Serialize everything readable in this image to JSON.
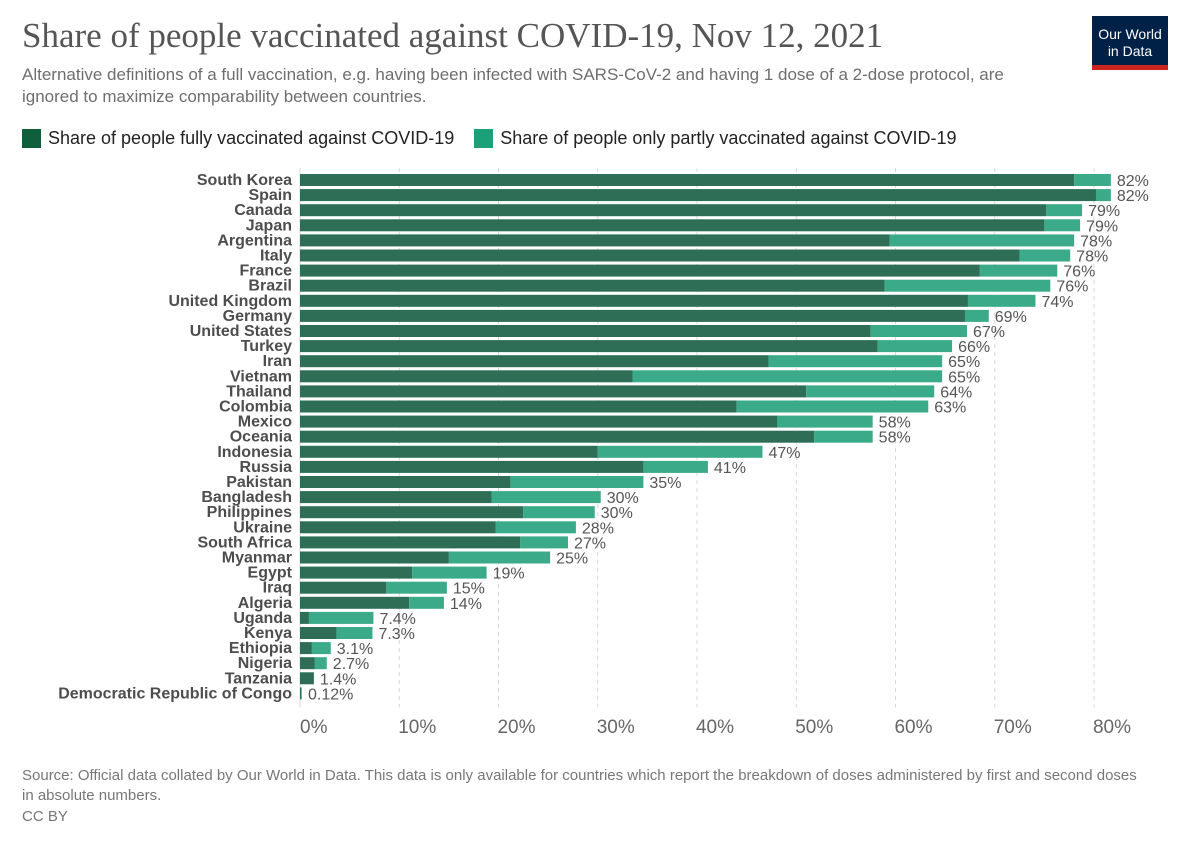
{
  "header": {
    "title": "Share of people vaccinated against COVID-19, Nov 12, 2021",
    "subtitle": "Alternative definitions of a full vaccination, e.g. having been infected with SARS-CoV-2 and having 1 dose of a 2-dose protocol, are ignored to maximize comparability between countries."
  },
  "logo": {
    "line1": "Our World",
    "line2": "in Data"
  },
  "footer": {
    "source": "Source: Official data collated by Our World in Data. This data is only available for countries which report the breakdown of doses administered by first and second doses in absolute numbers.",
    "license": "CC BY"
  },
  "colors": {
    "full": "#2e6e57",
    "partial": "#3aaa89",
    "legend_full": "#0f5e3c",
    "legend_partial": "#1ba079",
    "grid": "#d8d8d8",
    "logo_bg": "#002147",
    "logo_accent": "#ce261e"
  },
  "chart_data": {
    "type": "bar",
    "orientation": "horizontal",
    "stacked": true,
    "xlim": [
      0,
      80
    ],
    "x_ticks": [
      0,
      10,
      20,
      30,
      40,
      50,
      60,
      70,
      80
    ],
    "x_tick_labels": [
      "0%",
      "10%",
      "20%",
      "30%",
      "40%",
      "50%",
      "60%",
      "70%",
      "80%"
    ],
    "grid": "vertical dashed",
    "legend_position": "top",
    "categories": [
      "South Korea",
      "Spain",
      "Canada",
      "Japan",
      "Argentina",
      "Italy",
      "France",
      "Brazil",
      "United Kingdom",
      "Germany",
      "United States",
      "Turkey",
      "Iran",
      "Vietnam",
      "Thailand",
      "Colombia",
      "Mexico",
      "Oceania",
      "Indonesia",
      "Russia",
      "Pakistan",
      "Bangladesh",
      "Philippines",
      "Ukraine",
      "South Africa",
      "Myanmar",
      "Egypt",
      "Iraq",
      "Algeria",
      "Uganda",
      "Kenya",
      "Ethiopia",
      "Nigeria",
      "Tanzania",
      "Democratic Republic of Congo"
    ],
    "series": [
      {
        "name": "Share of people fully vaccinated against COVID-19",
        "values": [
          78.0,
          80.2,
          75.2,
          75.0,
          59.4,
          72.5,
          68.5,
          58.9,
          67.3,
          67.0,
          57.5,
          58.2,
          47.2,
          33.5,
          51.0,
          44.0,
          48.1,
          51.8,
          30.0,
          34.6,
          21.2,
          19.3,
          22.5,
          19.7,
          22.2,
          15.0,
          11.3,
          8.7,
          11.0,
          0.9,
          3.7,
          1.2,
          1.5,
          1.4,
          0.1
        ]
      },
      {
        "name": "Share of people only partly vaccinated against COVID-19",
        "values": [
          3.7,
          1.5,
          3.6,
          3.6,
          18.6,
          5.1,
          7.8,
          16.7,
          6.8,
          2.4,
          9.7,
          7.5,
          17.5,
          31.2,
          12.9,
          19.3,
          9.6,
          5.9,
          16.6,
          6.5,
          13.4,
          11.0,
          7.2,
          8.1,
          4.8,
          10.2,
          7.5,
          6.1,
          3.5,
          6.5,
          3.6,
          1.9,
          1.2,
          0.0,
          0.02
        ]
      }
    ],
    "total_labels": [
      "82%",
      "82%",
      "79%",
      "79%",
      "78%",
      "78%",
      "76%",
      "76%",
      "74%",
      "69%",
      "67%",
      "66%",
      "65%",
      "65%",
      "64%",
      "63%",
      "58%",
      "58%",
      "47%",
      "41%",
      "35%",
      "30%",
      "30%",
      "28%",
      "27%",
      "25%",
      "19%",
      "15%",
      "14%",
      "7.4%",
      "7.3%",
      "3.1%",
      "2.7%",
      "1.4%",
      "0.12%"
    ]
  }
}
